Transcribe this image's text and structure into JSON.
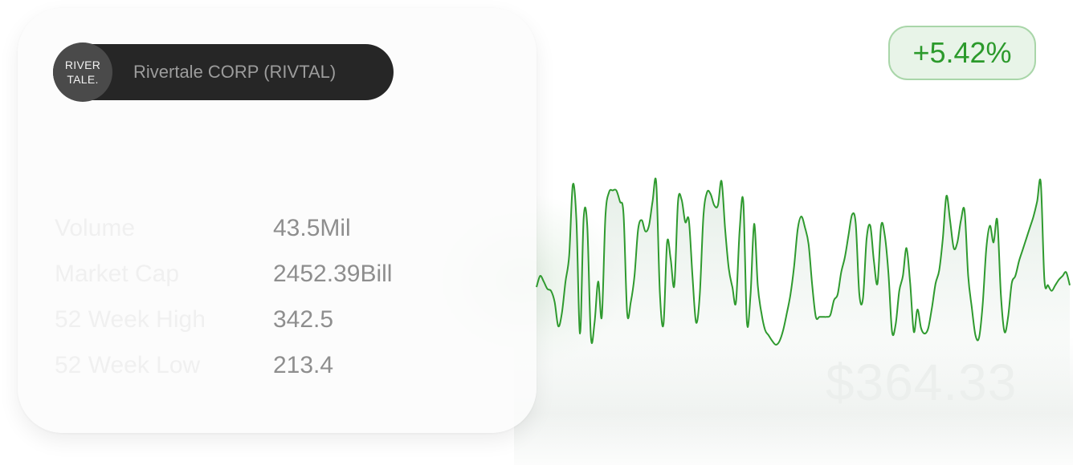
{
  "ticker": {
    "logo_line1": "RIVER",
    "logo_line2": "TALE.",
    "name": "Rivertale CORP (RIVTAL)"
  },
  "stats": [
    {
      "label": "Volume",
      "value": "43.5Mil"
    },
    {
      "label": "Market Cap",
      "value": "2452.39Bill"
    },
    {
      "label": "52 Week High",
      "value": "342.5"
    },
    {
      "label": "52 Week Low",
      "value": "213.4"
    }
  ],
  "change": "+5.42%",
  "price": "$364.33",
  "colors": {
    "line": "#2f9a2f",
    "badge_text": "#2c9a2c",
    "badge_bg": "#e8f4e8",
    "badge_border": "#a9d6a9"
  },
  "chart_data": {
    "type": "area",
    "title": "",
    "xlabel": "",
    "ylabel": "",
    "ylim": [
      0,
      100
    ],
    "x": [
      0,
      1,
      2,
      3,
      4,
      5,
      6,
      7,
      8,
      9,
      10,
      11,
      12,
      13,
      14,
      15,
      16,
      17,
      18,
      19,
      20,
      21,
      22,
      23,
      24,
      25,
      26,
      27,
      28,
      29,
      30,
      31,
      32,
      33,
      34,
      35,
      36,
      37,
      38,
      39,
      40,
      41,
      42,
      43,
      44,
      45,
      46,
      47,
      48,
      49,
      50,
      51,
      52,
      53,
      54,
      55,
      56,
      57,
      58,
      59,
      60,
      61,
      62,
      63,
      64,
      65,
      66,
      67,
      68,
      69,
      70,
      71,
      72,
      73,
      74,
      75,
      76,
      77,
      78,
      79,
      80,
      81,
      82,
      83,
      84,
      85,
      86,
      87,
      88,
      89,
      90,
      91,
      92,
      93,
      94,
      95,
      96,
      97,
      98,
      99,
      100,
      101,
      102,
      103,
      104,
      105,
      106,
      107,
      108,
      109,
      110,
      111,
      112,
      113,
      114,
      115,
      116,
      117,
      118,
      119,
      120,
      121,
      122,
      123,
      124,
      125,
      126,
      127,
      128,
      129,
      130,
      131,
      132,
      133,
      134,
      135,
      136,
      137,
      138,
      139,
      140,
      141,
      142,
      143,
      144,
      145,
      146,
      147
    ],
    "series": [
      {
        "values": [
          34,
          40,
          37,
          33,
          32,
          26,
          13,
          20,
          37,
          51,
          89,
          70,
          9,
          71,
          67,
          7,
          15,
          37,
          18,
          72,
          85,
          86,
          86,
          80,
          73,
          20,
          26,
          40,
          65,
          70,
          64,
          67,
          80,
          90,
          31,
          14,
          58,
          49,
          35,
          80,
          81,
          69,
          70,
          40,
          15,
          30,
          72,
          85,
          84,
          78,
          78,
          91,
          65,
          44,
          34,
          26,
          65,
          80,
          15,
          30,
          68,
          35,
          20,
          11,
          8,
          5,
          3,
          5,
          11,
          20,
          30,
          45,
          65,
          72,
          66,
          57,
          35,
          18,
          18,
          18,
          18,
          19,
          27,
          30,
          42,
          50,
          62,
          73,
          68,
          30,
          28,
          60,
          67,
          48,
          36,
          67,
          62,
          42,
          10,
          14,
          32,
          40,
          55,
          36,
          10,
          22,
          12,
          9,
          12,
          23,
          36,
          43,
          60,
          83,
          70,
          55,
          58,
          70,
          75,
          40,
          23,
          8,
          7,
          25,
          55,
          67,
          58,
          70,
          30,
          10,
          18,
          36,
          40,
          48,
          54,
          60,
          66,
          72,
          80,
          90,
          38,
          35,
          32,
          35,
          38,
          40,
          42,
          35
        ]
      }
    ]
  }
}
